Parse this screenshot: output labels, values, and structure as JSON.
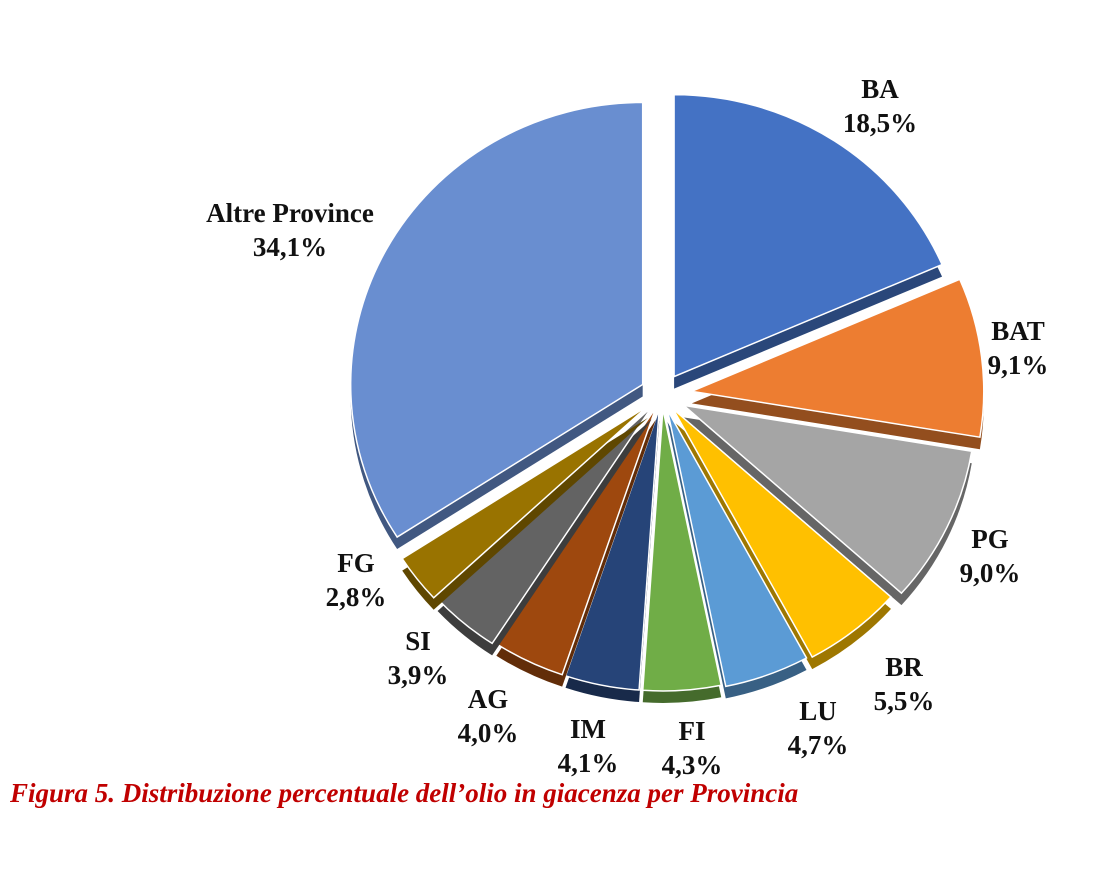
{
  "chart_data": {
    "type": "pie",
    "title": "",
    "categories": [
      "BA",
      "BAT",
      "PG",
      "BR",
      "LU",
      "FI",
      "IM",
      "AG",
      "SI",
      "FG",
      "Altre Province"
    ],
    "values": [
      18.5,
      9.1,
      9.0,
      5.5,
      4.7,
      4.3,
      4.1,
      4.0,
      3.9,
      2.8,
      34.1
    ],
    "value_labels": [
      "18,5%",
      "9,1%",
      "9,0%",
      "5,5%",
      "4,7%",
      "4,3%",
      "4,1%",
      "4,0%",
      "3,9%",
      "2,8%",
      "34,1%"
    ],
    "colors": [
      "#4472c4",
      "#ed7d31",
      "#a5a5a5",
      "#ffc000",
      "#5b9bd5",
      "#70ad47",
      "#264478",
      "#9e480e",
      "#636363",
      "#997300",
      "#698ed0"
    ],
    "exploded": true,
    "legend": "none",
    "data_labels": "outside"
  },
  "caption": "Figura 5. Distribuzione percentuale dell’olio in giacenza per Provincia"
}
